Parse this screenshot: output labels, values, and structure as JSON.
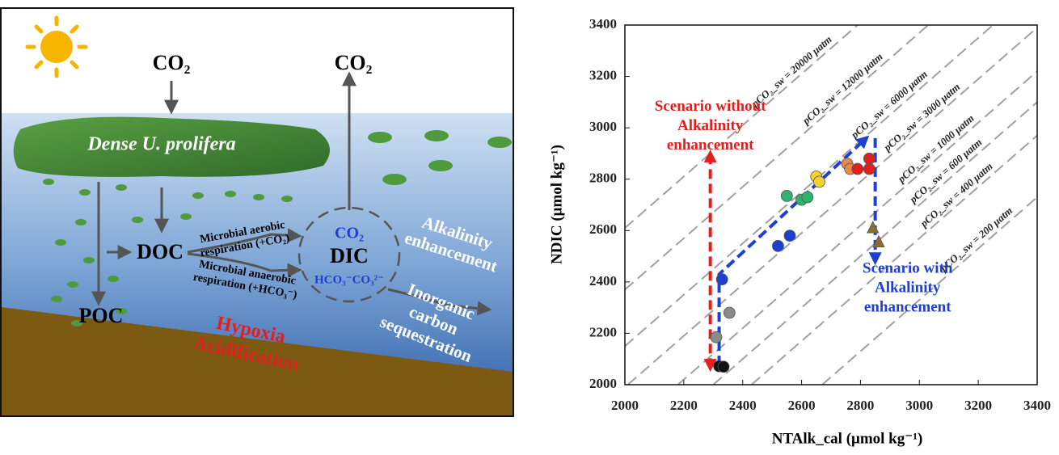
{
  "diagram": {
    "co2_in": "CO₂",
    "co2_out": "CO₂",
    "algae": "Dense U. prolifera",
    "doc": "DOC",
    "poc": "POC",
    "dic": "DIC",
    "dic_co2": "CO₂",
    "dic_ions": "HCO₃⁻CO₃²⁻",
    "aerobic": [
      "Microbial aerobic",
      "respiration (+CO₂)"
    ],
    "anaerobic": [
      "Microbial anaerobic",
      "respiration (+HCO₃⁻)"
    ],
    "hypoxia": [
      "Hypoxia",
      "Acidification"
    ],
    "alkalinity": [
      "Alkalinity",
      "enhancement"
    ],
    "sequestration": [
      "Inorganic",
      "carbon",
      "sequestration"
    ]
  },
  "chart_data": {
    "type": "scatter",
    "xlabel": "NTAlk_cal (μmol kg⁻¹)",
    "ylabel": "NDIC (μmol kg⁻¹)",
    "xlim": [
      2000,
      3400
    ],
    "ylim": [
      2000,
      3400
    ],
    "xticks": [
      2000,
      2200,
      2400,
      2600,
      2800,
      3000,
      3200,
      3400
    ],
    "yticks": [
      2000,
      2200,
      2400,
      2600,
      2800,
      3000,
      3200,
      3400
    ],
    "series": [
      {
        "color": "#111111",
        "marker": "circle",
        "x": [
          2320,
          2335
        ],
        "values": [
          2072,
          2070
        ]
      },
      {
        "color": "#8a8a8a",
        "marker": "circle",
        "x": [
          2355,
          2310
        ],
        "values": [
          2280,
          2185
        ]
      },
      {
        "color": "#1f3fd0",
        "marker": "circle",
        "x": [
          2330,
          2520,
          2560
        ],
        "values": [
          2410,
          2540,
          2580
        ]
      },
      {
        "color": "#2db36b",
        "marker": "circle",
        "x": [
          2550,
          2600,
          2620
        ],
        "values": [
          2735,
          2720,
          2730
        ]
      },
      {
        "color": "#f2d22e",
        "marker": "circle",
        "x": [
          2650,
          2660
        ],
        "values": [
          2810,
          2790
        ]
      },
      {
        "color": "#e8894a",
        "marker": "circle",
        "x": [
          2755,
          2765
        ],
        "values": [
          2860,
          2840
        ]
      },
      {
        "color": "#e0201e",
        "marker": "circle",
        "x": [
          2790,
          2830,
          2830
        ],
        "values": [
          2840,
          2880,
          2840
        ]
      },
      {
        "color": "#8b6d2c",
        "marker": "triangle",
        "x": [
          2842,
          2862
        ],
        "values": [
          2610,
          2555
        ]
      }
    ],
    "isolines": [
      {
        "label": "pCO₂_sw = 20000 μatm",
        "x": [
          2000,
          2790
        ],
        "y": [
          2610,
          3400
        ]
      },
      {
        "label": "pCO₂_sw = 12000 μatm",
        "x": [
          2000,
          3030
        ],
        "y": [
          2370,
          3400
        ]
      },
      {
        "label": "pCO₂_sw = 6000 μatm",
        "x": [
          2000,
          3250
        ],
        "y": [
          2150,
          3400
        ]
      },
      {
        "label": "pCO₂_sw = 3000 μatm",
        "x": [
          2010,
          3400
        ],
        "y": [
          2000,
          3390
        ]
      },
      {
        "label": "pCO₂_sw = 1000 μatm",
        "x": [
          2180,
          3400
        ],
        "y": [
          2000,
          3220
        ]
      },
      {
        "label": "pCO₂_sw = 600 μatm",
        "x": [
          2300,
          3400
        ],
        "y": [
          2000,
          3100
        ]
      },
      {
        "label": "pCO₂_sw = 400 μatm",
        "x": [
          2430,
          3400
        ],
        "y": [
          2000,
          2970
        ]
      },
      {
        "label": "pCO₂_sw = 200 μatm",
        "x": [
          2670,
          3400
        ],
        "y": [
          2000,
          2730
        ]
      }
    ],
    "arrows": [
      {
        "color": "#e0201e",
        "x": [
          2290,
          2290
        ],
        "y": [
          2065,
          2900
        ],
        "both": true
      },
      {
        "color": "#1f3fd0",
        "x": [
          2320,
          2320,
          2820
        ],
        "y": [
          2075,
          2430,
          2960
        ],
        "both": false
      },
      {
        "color": "#1f3fd0",
        "x": [
          2850,
          2850
        ],
        "y": [
          2960,
          2480
        ],
        "both": false
      }
    ],
    "annotations": [
      {
        "lines": [
          "Scenario without",
          "Alkalinity",
          "enhancement"
        ],
        "color": "#e0201e",
        "x": 2290,
        "y": 3080
      },
      {
        "lines": [
          "Scenario with",
          "Alkalinity",
          "enhancement"
        ],
        "color": "#1f3fd0",
        "x": 2960,
        "y": 2450
      }
    ]
  }
}
